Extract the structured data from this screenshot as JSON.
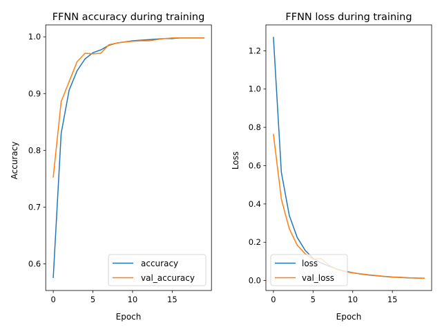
{
  "chart_data": [
    {
      "type": "line",
      "title": "FFNN accuracy during training",
      "xlabel": "Epoch",
      "ylabel": "Accuracy",
      "x": [
        0,
        1,
        2,
        3,
        4,
        5,
        6,
        7,
        8,
        9,
        10,
        11,
        12,
        13,
        14,
        15,
        16,
        17,
        18,
        19
      ],
      "xlim": [
        -0.95,
        19.95
      ],
      "ylim": [
        0.553,
        1.021
      ],
      "xticks": [
        0,
        5,
        10,
        15
      ],
      "xtick_labels": [
        "0",
        "5",
        "10",
        "15"
      ],
      "yticks": [
        0.6,
        0.7,
        0.8,
        0.9,
        1.0
      ],
      "ytick_labels": [
        "0.6",
        "0.7",
        "0.8",
        "0.9",
        "1.0"
      ],
      "legend_loc": "lower right",
      "grid": false,
      "series": [
        {
          "name": "accuracy",
          "color": "#1f77b4",
          "values": [
            0.576,
            0.83,
            0.906,
            0.94,
            0.961,
            0.972,
            0.977,
            0.985,
            0.989,
            0.991,
            0.993,
            0.994,
            0.995,
            0.996,
            0.997,
            0.997,
            0.998,
            0.998,
            0.998,
            0.998
          ]
        },
        {
          "name": "val_accuracy",
          "color": "#ff7f0e",
          "values": [
            0.753,
            0.886,
            0.921,
            0.956,
            0.971,
            0.97,
            0.971,
            0.986,
            0.989,
            0.991,
            0.992,
            0.993,
            0.993,
            0.995,
            0.997,
            0.998,
            0.998,
            0.998,
            0.998,
            0.998
          ]
        }
      ]
    },
    {
      "type": "line",
      "title": "FFNN loss during training",
      "xlabel": "Epoch",
      "ylabel": "Loss",
      "x": [
        0,
        1,
        2,
        3,
        4,
        5,
        6,
        7,
        8,
        9,
        10,
        11,
        12,
        13,
        14,
        15,
        16,
        17,
        18,
        19
      ],
      "xlim": [
        -0.95,
        19.95
      ],
      "ylim": [
        -0.052,
        1.335
      ],
      "xticks": [
        0,
        5,
        10,
        15
      ],
      "xtick_labels": [
        "0",
        "5",
        "10",
        "15"
      ],
      "yticks": [
        0.0,
        0.2,
        0.4,
        0.6,
        0.8,
        1.0,
        1.2
      ],
      "ytick_labels": [
        "0.0",
        "0.2",
        "0.4",
        "0.6",
        "0.8",
        "1.0",
        "1.2"
      ],
      "legend_loc": "lower left",
      "grid": false,
      "series": [
        {
          "name": "loss",
          "color": "#1f77b4",
          "values": [
            1.27,
            0.565,
            0.34,
            0.225,
            0.158,
            0.116,
            0.092,
            0.075,
            0.06,
            0.049,
            0.041,
            0.034,
            0.029,
            0.025,
            0.021,
            0.018,
            0.016,
            0.014,
            0.013,
            0.012
          ]
        },
        {
          "name": "val_loss",
          "color": "#ff7f0e",
          "values": [
            0.763,
            0.425,
            0.27,
            0.185,
            0.14,
            0.11,
            0.115,
            0.08,
            0.058,
            0.047,
            0.04,
            0.035,
            0.03,
            0.026,
            0.022,
            0.019,
            0.017,
            0.015,
            0.013,
            0.012
          ]
        }
      ]
    }
  ]
}
